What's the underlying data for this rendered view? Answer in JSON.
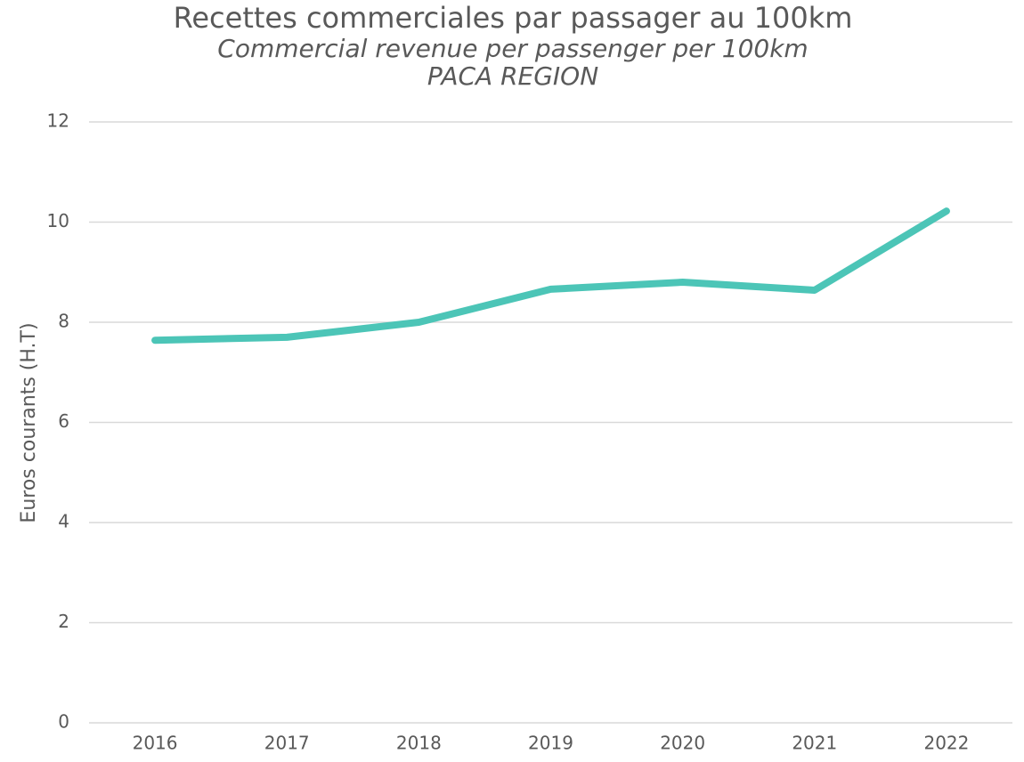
{
  "chart_data": {
    "type": "line",
    "title": "Recettes commerciales par passager au 100km",
    "subtitle": [
      "Commercial revenue per passenger per 100km",
      "PACA REGION"
    ],
    "y_label": "Euros courants (H.T)",
    "categories": [
      "2016",
      "2017",
      "2018",
      "2019",
      "2020",
      "2021",
      "2022"
    ],
    "series": [
      {
        "name": "Recettes commerciales par passager au 100km",
        "color": "#4cc5b7",
        "values": [
          7.64,
          7.7,
          8.0,
          8.66,
          8.8,
          8.64,
          10.22
        ]
      }
    ],
    "ylim": [
      0,
      12
    ],
    "yticks": [
      0,
      2,
      4,
      6,
      8,
      10,
      12
    ],
    "grid": true,
    "legend": false
  }
}
